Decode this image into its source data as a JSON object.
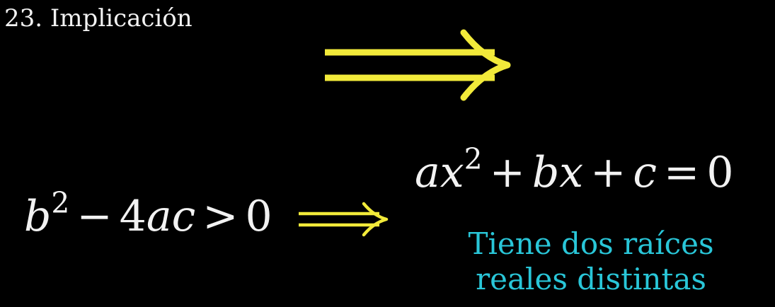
{
  "title": "23. Implicación",
  "colors": {
    "background": "#000000",
    "text": "#f2f2f2",
    "arrow": "#f2ea3a",
    "caption": "#29c6d8"
  },
  "icons": {
    "big_arrow": "implies-arrow-icon",
    "small_arrow": "implies-arrow-icon"
  },
  "lhs": {
    "base": "b",
    "exponent": "2",
    "minus": "−",
    "term": "4ac",
    "relation": ">",
    "value": "0"
  },
  "rhs": {
    "a": "a",
    "x1": "x",
    "exponent": "2",
    "plus1": "+",
    "b": "b",
    "x2": "x",
    "plus2": "+",
    "c": "c",
    "equals": "=",
    "value": "0"
  },
  "caption": {
    "line1": "Tiene dos raíces",
    "line2": "reales distintas"
  }
}
